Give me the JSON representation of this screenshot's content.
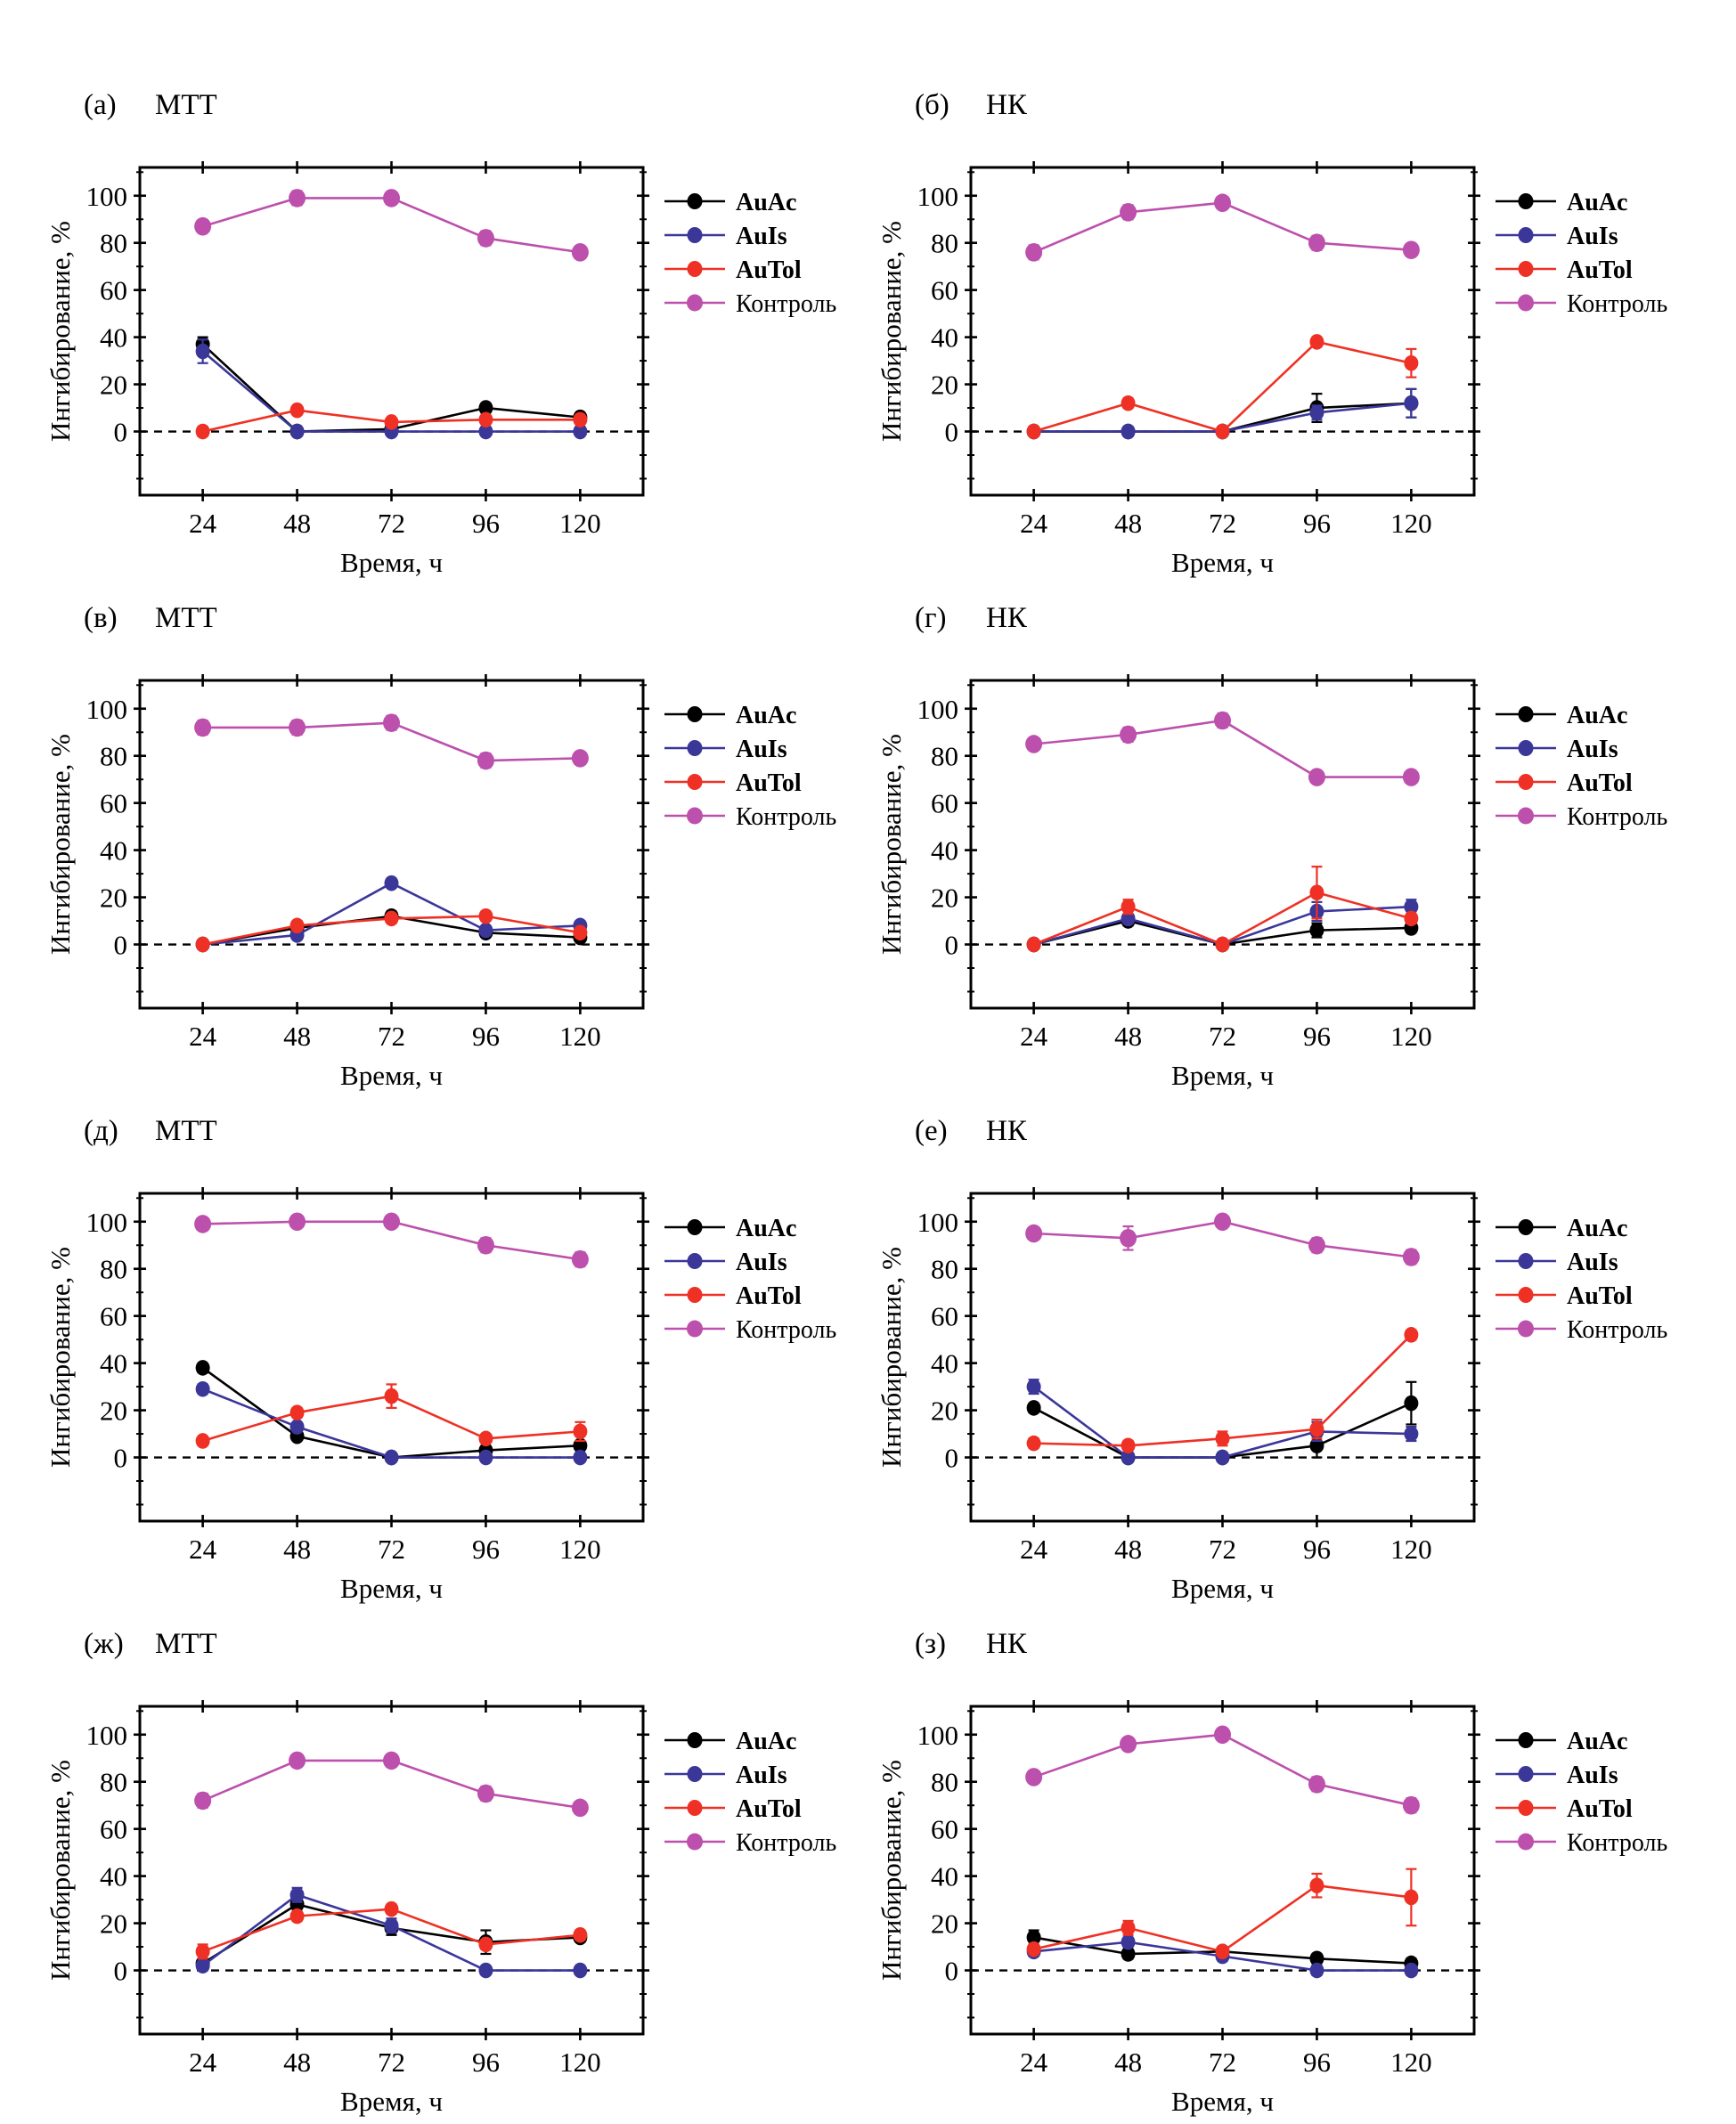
{
  "figure": {
    "left_column_assay": "МТТ",
    "right_column_assay": "НК"
  },
  "chart_data": [
    {
      "type": "line",
      "panel_label": "(а)",
      "assay": "МТТ",
      "xlabel": "Время, ч",
      "ylabel": "Ингибирование, %",
      "x": [
        24,
        48,
        72,
        96,
        120
      ],
      "yticks": [
        0,
        20,
        40,
        60,
        80,
        100
      ],
      "xlim": [
        8,
        136
      ],
      "ylim": [
        -27,
        112
      ],
      "grid": false,
      "zero_line_dashed": true,
      "legend_position": "right",
      "series": [
        {
          "name": "AuAc",
          "color": "#000000",
          "bold_label": true,
          "values": [
            37,
            0,
            1,
            10,
            6
          ],
          "errors": [
            3,
            0,
            0,
            2,
            1
          ]
        },
        {
          "name": "AuIs",
          "color": "#3A3799",
          "bold_label": true,
          "values": [
            34,
            0,
            0,
            0,
            0
          ],
          "errors": [
            5,
            0,
            0,
            0,
            0
          ]
        },
        {
          "name": "AuTol",
          "color": "#EE3124",
          "bold_label": true,
          "values": [
            0,
            9,
            4,
            5,
            5
          ],
          "errors": [
            2,
            1,
            1,
            1,
            1
          ]
        },
        {
          "name": "Контроль",
          "color": "#BC50AC",
          "bold_label": false,
          "values": [
            87,
            99,
            99,
            82,
            76
          ],
          "errors": [
            2,
            3,
            2,
            3,
            2
          ]
        }
      ]
    },
    {
      "type": "line",
      "panel_label": "(б)",
      "assay": "НК",
      "xlabel": "Время, ч",
      "ylabel": "Ингибирование, %",
      "x": [
        24,
        48,
        72,
        96,
        120
      ],
      "yticks": [
        0,
        20,
        40,
        60,
        80,
        100
      ],
      "xlim": [
        8,
        136
      ],
      "ylim": [
        -27,
        112
      ],
      "grid": false,
      "zero_line_dashed": true,
      "legend_position": "right",
      "series": [
        {
          "name": "AuAc",
          "color": "#000000",
          "bold_label": true,
          "values": [
            0,
            0,
            0,
            10,
            12
          ],
          "errors": [
            0,
            0,
            0,
            6,
            6
          ]
        },
        {
          "name": "AuIs",
          "color": "#3A3799",
          "bold_label": true,
          "values": [
            0,
            0,
            0,
            8,
            12
          ],
          "errors": [
            0,
            2,
            0,
            3,
            6
          ]
        },
        {
          "name": "AuTol",
          "color": "#EE3124",
          "bold_label": true,
          "values": [
            0,
            12,
            0,
            38,
            29
          ],
          "errors": [
            1,
            2,
            1,
            2,
            6
          ]
        },
        {
          "name": "Контроль",
          "color": "#BC50AC",
          "bold_label": false,
          "values": [
            76,
            93,
            97,
            80,
            77
          ],
          "errors": [
            3,
            3,
            2,
            3,
            2
          ]
        }
      ]
    },
    {
      "type": "line",
      "panel_label": "(в)",
      "assay": "МТТ",
      "xlabel": "Время, ч",
      "ylabel": "Ингибирование, %",
      "x": [
        24,
        48,
        72,
        96,
        120
      ],
      "yticks": [
        0,
        20,
        40,
        60,
        80,
        100
      ],
      "xlim": [
        8,
        136
      ],
      "ylim": [
        -27,
        112
      ],
      "grid": false,
      "zero_line_dashed": true,
      "legend_position": "right",
      "series": [
        {
          "name": "AuAc",
          "color": "#000000",
          "bold_label": true,
          "values": [
            0,
            7,
            12,
            5,
            3
          ],
          "errors": [
            0,
            1,
            2,
            1,
            1
          ]
        },
        {
          "name": "AuIs",
          "color": "#3A3799",
          "bold_label": true,
          "values": [
            0,
            4,
            26,
            6,
            8
          ],
          "errors": [
            0,
            1,
            2,
            1,
            1
          ]
        },
        {
          "name": "AuTol",
          "color": "#EE3124",
          "bold_label": true,
          "values": [
            0,
            8,
            11,
            12,
            5
          ],
          "errors": [
            1,
            2,
            1,
            2,
            1
          ]
        },
        {
          "name": "Контроль",
          "color": "#BC50AC",
          "bold_label": false,
          "values": [
            92,
            92,
            94,
            78,
            79
          ],
          "errors": [
            3,
            3,
            3,
            3,
            2
          ]
        }
      ]
    },
    {
      "type": "line",
      "panel_label": "(г)",
      "assay": "НК",
      "xlabel": "Время, ч",
      "ylabel": "Ингибирование, %",
      "x": [
        24,
        48,
        72,
        96,
        120
      ],
      "yticks": [
        0,
        20,
        40,
        60,
        80,
        100
      ],
      "xlim": [
        8,
        136
      ],
      "ylim": [
        -27,
        112
      ],
      "grid": false,
      "zero_line_dashed": true,
      "legend_position": "right",
      "series": [
        {
          "name": "AuAc",
          "color": "#000000",
          "bold_label": true,
          "values": [
            0,
            10,
            0,
            6,
            7
          ],
          "errors": [
            0,
            2,
            0,
            3,
            2
          ]
        },
        {
          "name": "AuIs",
          "color": "#3A3799",
          "bold_label": true,
          "values": [
            0,
            11,
            0,
            14,
            16
          ],
          "errors": [
            0,
            2,
            0,
            4,
            3
          ]
        },
        {
          "name": "AuTol",
          "color": "#EE3124",
          "bold_label": true,
          "values": [
            0,
            16,
            0,
            22,
            11
          ],
          "errors": [
            1,
            3,
            1,
            11,
            2
          ]
        },
        {
          "name": "Контроль",
          "color": "#BC50AC",
          "bold_label": false,
          "values": [
            85,
            89,
            95,
            71,
            71
          ],
          "errors": [
            2,
            3,
            3,
            2,
            2
          ]
        }
      ]
    },
    {
      "type": "line",
      "panel_label": "(д)",
      "assay": "МТТ",
      "xlabel": "Время, ч",
      "ylabel": "Ингибирование, %",
      "x": [
        24,
        48,
        72,
        96,
        120
      ],
      "yticks": [
        0,
        20,
        40,
        60,
        80,
        100
      ],
      "xlim": [
        8,
        136
      ],
      "ylim": [
        -27,
        112
      ],
      "grid": false,
      "zero_line_dashed": true,
      "legend_position": "right",
      "series": [
        {
          "name": "AuAc",
          "color": "#000000",
          "bold_label": true,
          "values": [
            38,
            9,
            0,
            3,
            5
          ],
          "errors": [
            2,
            1,
            1,
            1,
            1
          ]
        },
        {
          "name": "AuIs",
          "color": "#3A3799",
          "bold_label": true,
          "values": [
            29,
            13,
            0,
            0,
            0
          ],
          "errors": [
            2,
            1,
            1,
            1,
            1
          ]
        },
        {
          "name": "AuTol",
          "color": "#EE3124",
          "bold_label": true,
          "values": [
            7,
            19,
            26,
            8,
            11
          ],
          "errors": [
            1,
            2,
            5,
            1,
            4
          ]
        },
        {
          "name": "Контроль",
          "color": "#BC50AC",
          "bold_label": false,
          "values": [
            99,
            100,
            100,
            90,
            84
          ],
          "errors": [
            2,
            1,
            1,
            3,
            3
          ]
        }
      ]
    },
    {
      "type": "line",
      "panel_label": "(е)",
      "assay": "НК",
      "xlabel": "Время, ч",
      "ylabel": "Ингибирование, %",
      "x": [
        24,
        48,
        72,
        96,
        120
      ],
      "yticks": [
        0,
        20,
        40,
        60,
        80,
        100
      ],
      "xlim": [
        8,
        136
      ],
      "ylim": [
        -27,
        112
      ],
      "grid": false,
      "zero_line_dashed": true,
      "legend_position": "right",
      "series": [
        {
          "name": "AuAc",
          "color": "#000000",
          "bold_label": true,
          "values": [
            21,
            0,
            0,
            5,
            23
          ],
          "errors": [
            2,
            1,
            1,
            5,
            9
          ]
        },
        {
          "name": "AuIs",
          "color": "#3A3799",
          "bold_label": true,
          "values": [
            30,
            0,
            0,
            11,
            10
          ],
          "errors": [
            3,
            2,
            2,
            4,
            3
          ]
        },
        {
          "name": "AuTol",
          "color": "#EE3124",
          "bold_label": true,
          "values": [
            6,
            5,
            8,
            12,
            52
          ],
          "errors": [
            2,
            2,
            3,
            4,
            2
          ]
        },
        {
          "name": "Контроль",
          "color": "#BC50AC",
          "bold_label": false,
          "values": [
            95,
            93,
            100,
            90,
            85
          ],
          "errors": [
            2,
            5,
            2,
            3,
            3
          ]
        }
      ]
    },
    {
      "type": "line",
      "panel_label": "(ж)",
      "assay": "МТТ",
      "xlabel": "Время, ч",
      "ylabel": "Ингибирование, %",
      "x": [
        24,
        48,
        72,
        96,
        120
      ],
      "yticks": [
        0,
        20,
        40,
        60,
        80,
        100
      ],
      "xlim": [
        8,
        136
      ],
      "ylim": [
        -27,
        112
      ],
      "grid": false,
      "zero_line_dashed": true,
      "legend_position": "right",
      "series": [
        {
          "name": "AuAc",
          "color": "#000000",
          "bold_label": true,
          "values": [
            3,
            28,
            18,
            12,
            14
          ],
          "errors": [
            2,
            2,
            3,
            5,
            1
          ]
        },
        {
          "name": "AuIs",
          "color": "#3A3799",
          "bold_label": true,
          "values": [
            2,
            32,
            19,
            0,
            0
          ],
          "errors": [
            2,
            3,
            3,
            1,
            1
          ]
        },
        {
          "name": "AuTol",
          "color": "#EE3124",
          "bold_label": true,
          "values": [
            8,
            23,
            26,
            11,
            15
          ],
          "errors": [
            3,
            2,
            2,
            2,
            2
          ]
        },
        {
          "name": "Контроль",
          "color": "#BC50AC",
          "bold_label": false,
          "values": [
            72,
            89,
            89,
            75,
            69
          ],
          "errors": [
            3,
            2,
            2,
            3,
            2
          ]
        }
      ]
    },
    {
      "type": "line",
      "panel_label": "(з)",
      "assay": "НК",
      "xlabel": "Время, ч",
      "ylabel": "Ингибирование, %",
      "x": [
        24,
        48,
        72,
        96,
        120
      ],
      "yticks": [
        0,
        20,
        40,
        60,
        80,
        100
      ],
      "xlim": [
        8,
        136
      ],
      "ylim": [
        -27,
        112
      ],
      "grid": false,
      "zero_line_dashed": true,
      "legend_position": "right",
      "series": [
        {
          "name": "AuAc",
          "color": "#000000",
          "bold_label": true,
          "values": [
            14,
            7,
            8,
            5,
            3
          ],
          "errors": [
            3,
            2,
            2,
            2,
            2
          ]
        },
        {
          "name": "AuIs",
          "color": "#3A3799",
          "bold_label": true,
          "values": [
            8,
            12,
            6,
            0,
            0
          ],
          "errors": [
            2,
            2,
            2,
            2,
            2
          ]
        },
        {
          "name": "AuTol",
          "color": "#EE3124",
          "bold_label": true,
          "values": [
            9,
            18,
            8,
            36,
            31
          ],
          "errors": [
            2,
            3,
            2,
            5,
            12
          ]
        },
        {
          "name": "Контроль",
          "color": "#BC50AC",
          "bold_label": false,
          "values": [
            82,
            96,
            100,
            79,
            70
          ],
          "errors": [
            2,
            2,
            2,
            3,
            3
          ]
        }
      ]
    }
  ]
}
